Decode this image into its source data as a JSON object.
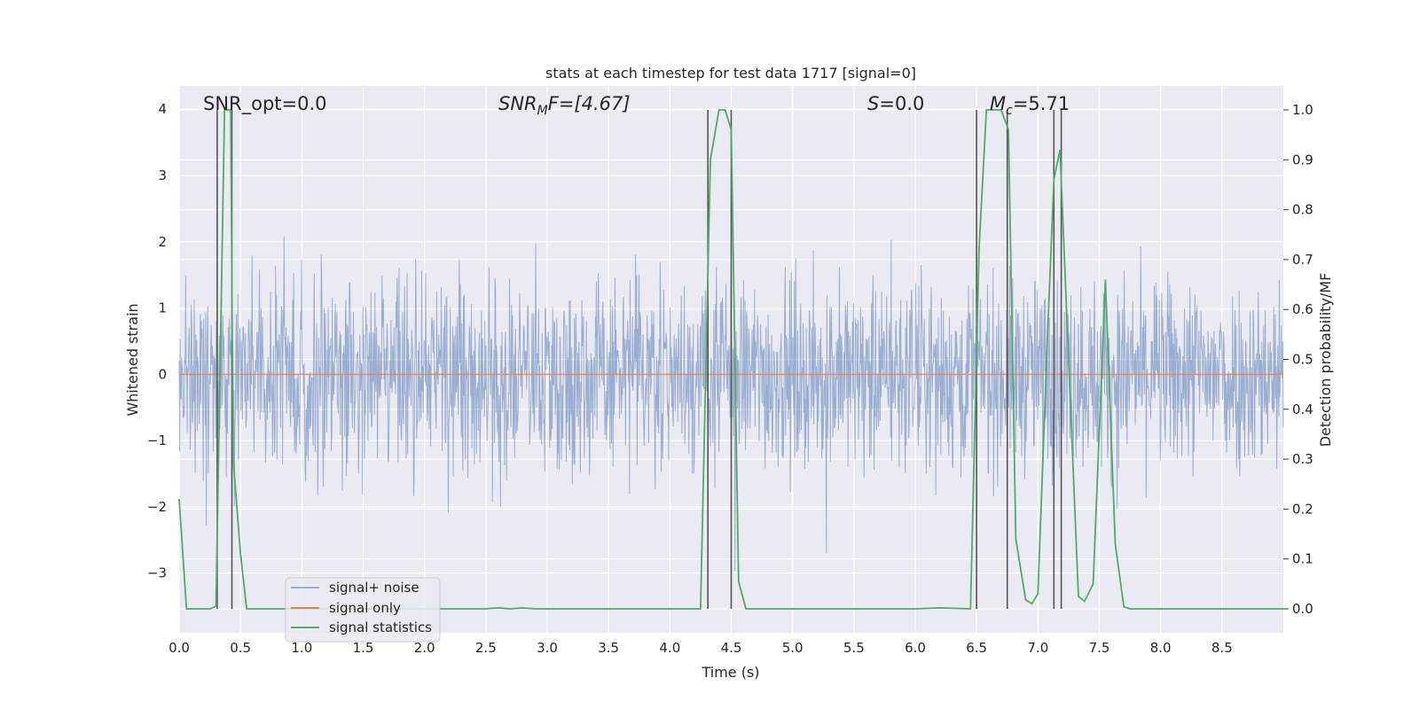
{
  "chart_data": {
    "type": "line",
    "title": "stats at each timestep for test data 1717 [signal=0]",
    "xlabel": "Time (s)",
    "ylabel": "Whitened strain",
    "ylabel_right": "Detection probability/MF",
    "xlim": [
      0,
      9
    ],
    "ylim": [
      -3.9,
      4.35
    ],
    "ylim_right": [
      -0.048,
      1.048
    ],
    "x_ticks": [
      "0.0",
      "0.5",
      "1.0",
      "1.5",
      "2.0",
      "2.5",
      "3.0",
      "3.5",
      "4.0",
      "4.5",
      "5.0",
      "5.5",
      "6.0",
      "6.5",
      "7.0",
      "7.5",
      "8.0",
      "8.5"
    ],
    "y_ticks": [
      "4",
      "3",
      "2",
      "1",
      "0",
      "−1",
      "−2",
      "−3"
    ],
    "y_ticks_right": [
      "1.0",
      "0.9",
      "0.8",
      "0.7",
      "0.6",
      "0.5",
      "0.4",
      "0.3",
      "0.2",
      "0.1",
      "0.0"
    ],
    "annotations": [
      "SNR_opt=0.0",
      "SNR",
      "M",
      "F=[4.67]",
      "S",
      "=0.0",
      "M",
      "c",
      "=5.71"
    ],
    "legend": [
      "signal+ noise",
      "signal only",
      "signal statistics"
    ],
    "colors": {
      "noise": "#4c72b0",
      "signal": "#dd8452",
      "stats": "#55a868",
      "vline": "#555555"
    },
    "noise_seed": 1717,
    "noise_samples": 2200,
    "vlines": [
      0.31,
      0.43,
      4.31,
      4.5,
      6.5,
      6.75,
      7.13,
      7.19
    ],
    "series": [
      {
        "name": "signal only",
        "x": [
          0,
          9
        ],
        "values": [
          0,
          0
        ]
      },
      {
        "name": "signal statistics",
        "x": [
          0.0,
          0.06,
          0.1,
          0.18,
          0.25,
          0.3,
          0.37,
          0.42,
          0.44,
          0.5,
          0.55,
          0.6,
          1.0,
          1.5,
          2.0,
          2.5,
          2.6,
          2.7,
          2.8,
          2.9,
          3.5,
          4.0,
          4.25,
          4.33,
          4.4,
          4.45,
          4.5,
          4.56,
          4.62,
          4.7,
          5.0,
          5.5,
          6.0,
          6.2,
          6.45,
          6.52,
          6.58,
          6.62,
          6.7,
          6.76,
          6.82,
          6.9,
          6.95,
          7.0,
          7.08,
          7.13,
          7.18,
          7.25,
          7.33,
          7.38,
          7.45,
          7.55,
          7.63,
          7.7,
          7.75,
          8.0,
          8.5,
          9.0
        ],
        "values": [
          0.22,
          0.0,
          0.0,
          0.0,
          0.0,
          0.005,
          1.0,
          1.0,
          0.3,
          0.11,
          0.0,
          0.0,
          0.0,
          0.0,
          0.0,
          0.0,
          0.002,
          0.0,
          0.002,
          0.0,
          0.0,
          0.0,
          0.0,
          0.9,
          1.0,
          1.0,
          0.96,
          0.055,
          0.0,
          0.0,
          0.0,
          0.0,
          0.0,
          0.002,
          0.0,
          0.72,
          1.0,
          1.0,
          1.0,
          0.96,
          0.14,
          0.018,
          0.01,
          0.03,
          0.56,
          0.86,
          0.92,
          0.5,
          0.025,
          0.015,
          0.05,
          0.66,
          0.13,
          0.004,
          0.0,
          0.0,
          0.0,
          0.0
        ]
      }
    ]
  }
}
